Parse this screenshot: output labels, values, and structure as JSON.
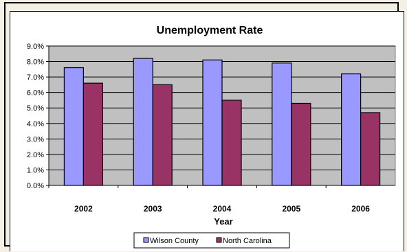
{
  "chart_data": {
    "type": "bar",
    "title": "Unemployment Rate",
    "xlabel": "Year",
    "ylabel": "",
    "categories": [
      "2002",
      "2003",
      "2004",
      "2005",
      "2006"
    ],
    "series": [
      {
        "name": "Wilson County",
        "color": "#9999ff",
        "values": [
          7.6,
          8.2,
          8.1,
          7.9,
          7.2
        ]
      },
      {
        "name": "North Carolina",
        "color": "#993366",
        "values": [
          6.6,
          6.5,
          5.5,
          5.3,
          4.7
        ]
      }
    ],
    "ylim": [
      0,
      9
    ],
    "yticks": [
      "0.0%",
      "1.0%",
      "2.0%",
      "3.0%",
      "4.0%",
      "5.0%",
      "6.0%",
      "7.0%",
      "8.0%",
      "9.0%"
    ],
    "grid": true,
    "plot_background": "#c0c0c0",
    "legend_position": "bottom"
  }
}
